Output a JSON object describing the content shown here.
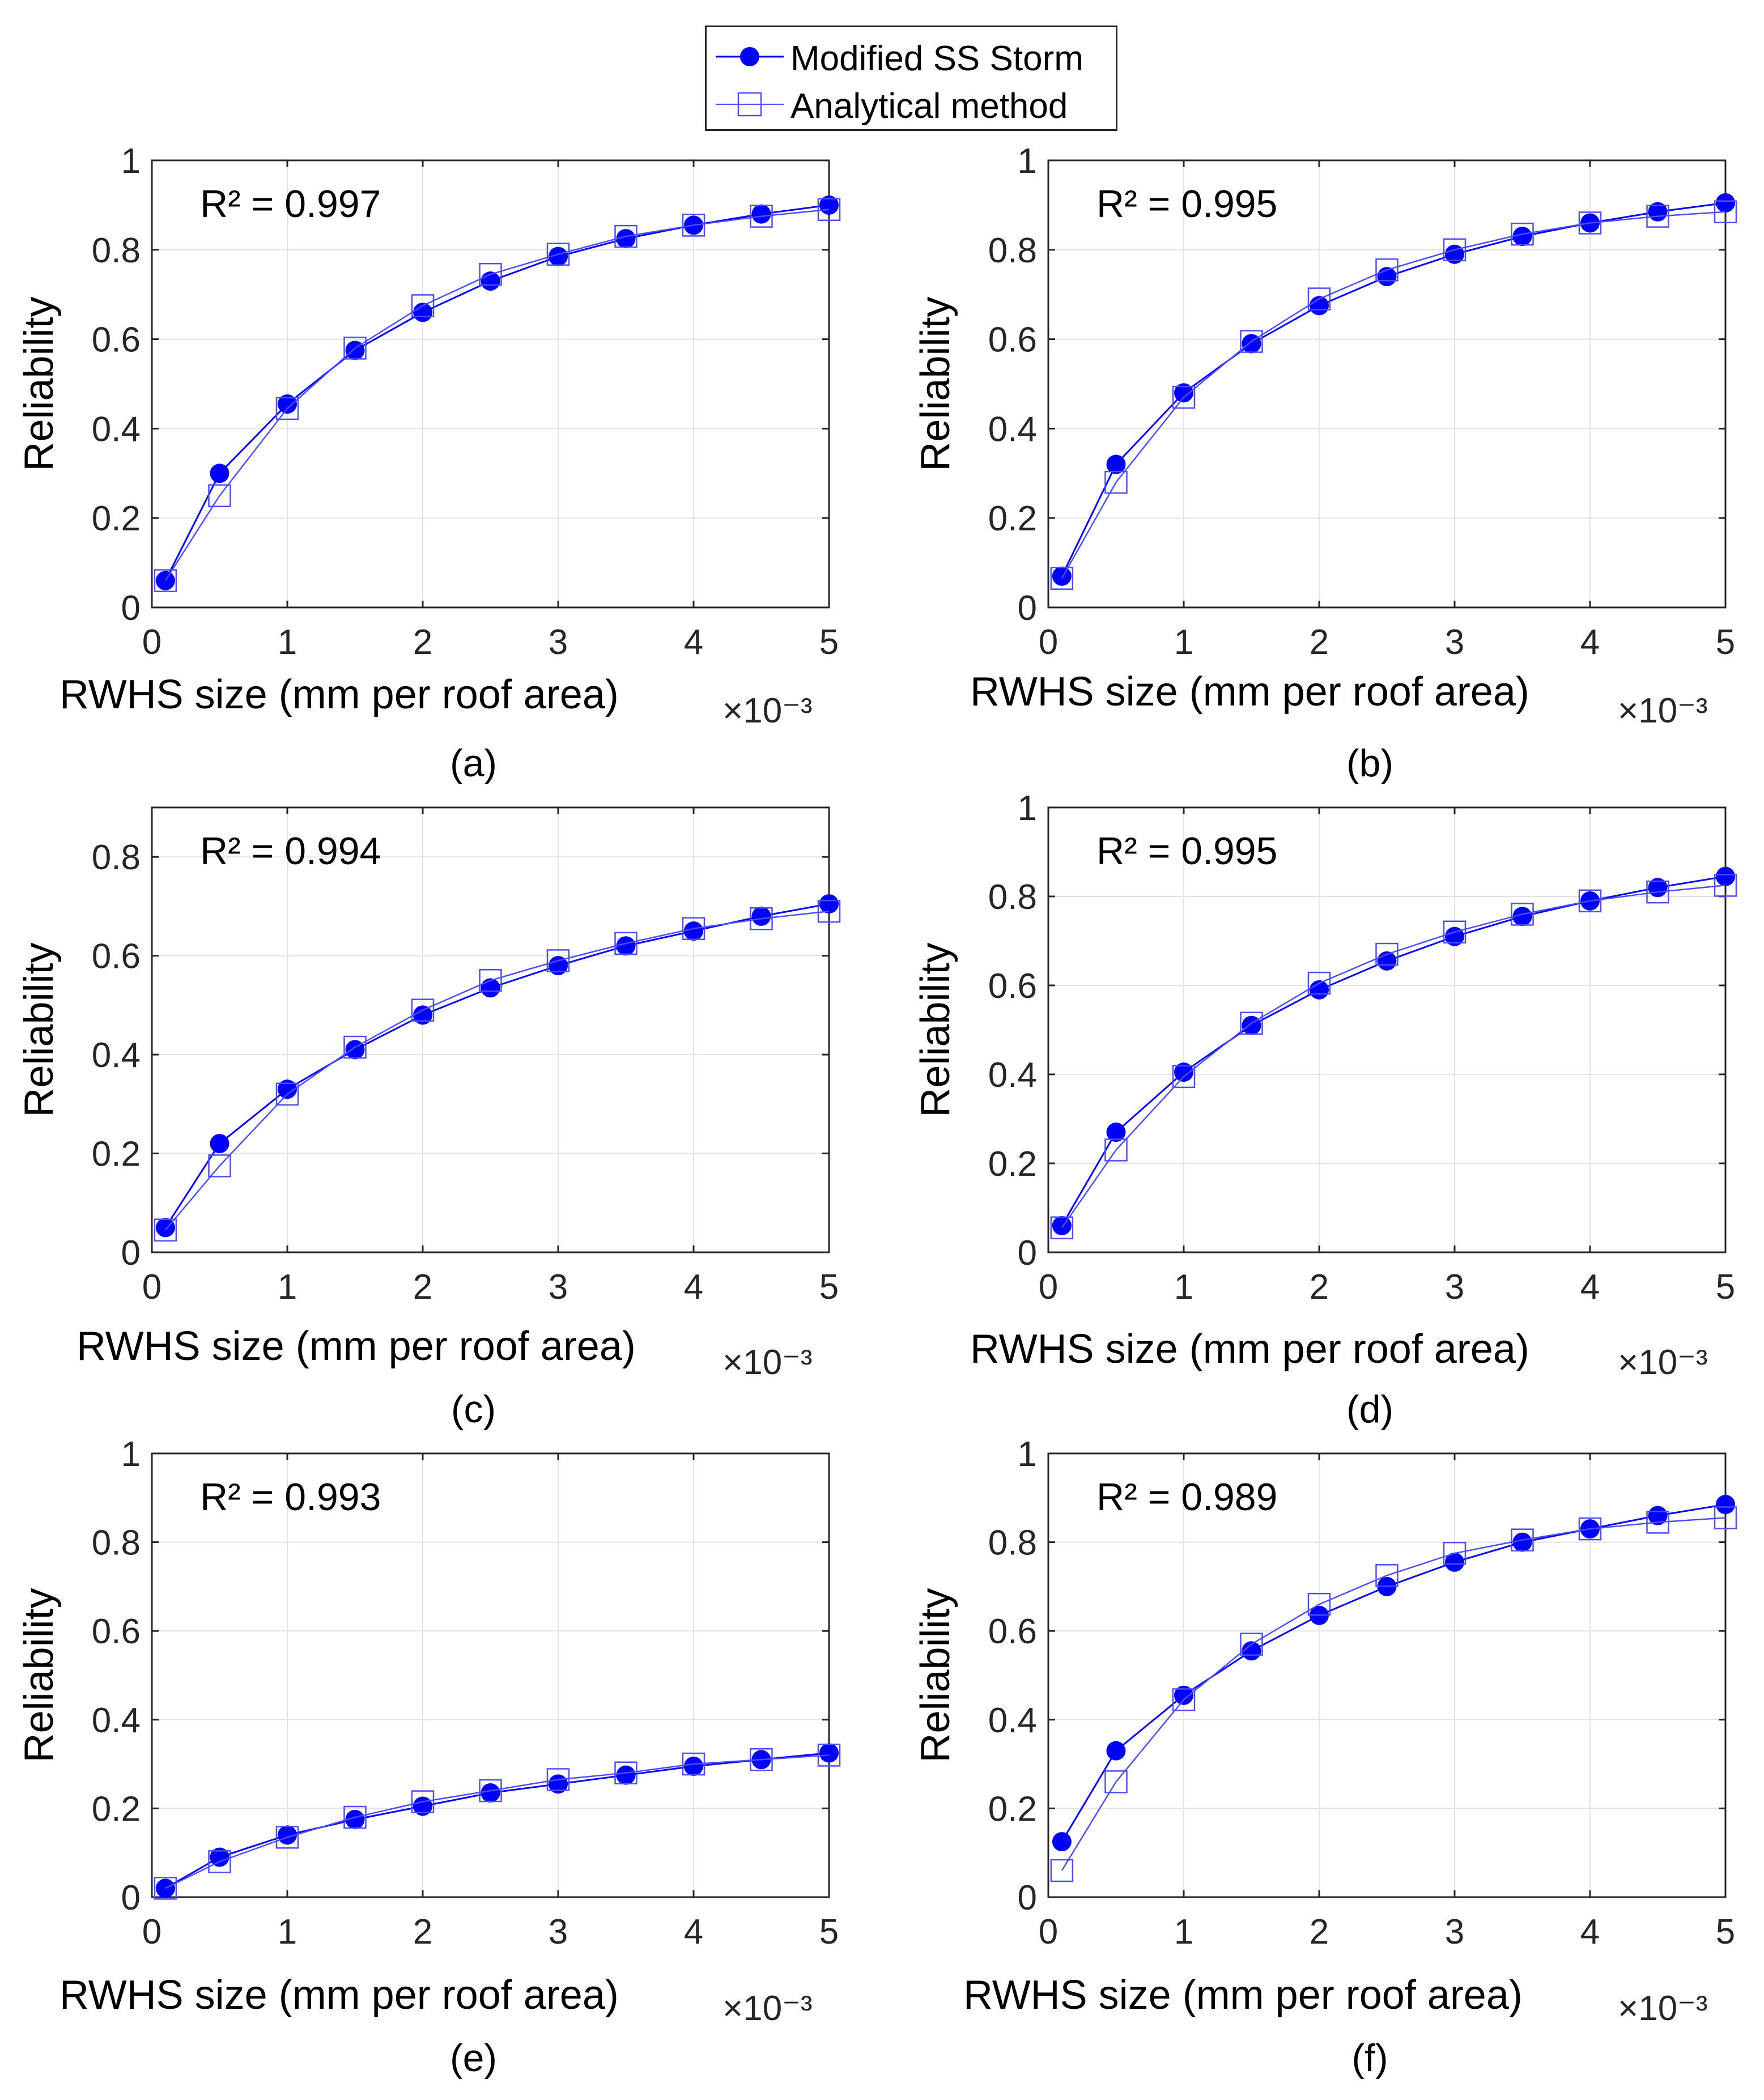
{
  "legend": {
    "series1": "Modified SS Storm",
    "series2": "Analytical method"
  },
  "colors": {
    "series": "#0000ff",
    "axis": "#262626",
    "grid": "#e3e3e3"
  },
  "chart_data": [
    {
      "type": "line",
      "panel_label": "(a)",
      "annotation": "R² = 0.997",
      "xlabel": "RWHS size (mm per roof area)",
      "x_multiplier": "×10⁻³",
      "ylabel": "Reliability",
      "xlim": [
        0,
        5
      ],
      "ylim": [
        0,
        1
      ],
      "xticks": [
        "0",
        "1",
        "2",
        "3",
        "4",
        "5"
      ],
      "yticks": [
        "0",
        "0.2",
        "0.4",
        "0.6",
        "0.8",
        "1"
      ],
      "x": [
        0.1,
        0.5,
        1,
        1.5,
        2,
        2.5,
        3,
        3.5,
        4,
        4.5,
        5
      ],
      "series": [
        {
          "name": "Modified SS Storm",
          "marker": "filled-circle",
          "values": [
            0.06,
            0.3,
            0.455,
            0.575,
            0.66,
            0.73,
            0.785,
            0.825,
            0.855,
            0.88,
            0.9
          ]
        },
        {
          "name": "Analytical method",
          "marker": "open-square",
          "values": [
            0.06,
            0.25,
            0.445,
            0.58,
            0.675,
            0.745,
            0.79,
            0.83,
            0.855,
            0.875,
            0.89
          ]
        }
      ]
    },
    {
      "type": "line",
      "panel_label": "(b)",
      "annotation": "R² = 0.995",
      "xlabel": "RWHS size (mm per roof area)",
      "x_multiplier": "×10⁻³",
      "ylabel": "Reliability",
      "xlim": [
        0,
        5
      ],
      "ylim": [
        0,
        1
      ],
      "xticks": [
        "0",
        "1",
        "2",
        "3",
        "4",
        "5"
      ],
      "yticks": [
        "0",
        "0.2",
        "0.4",
        "0.6",
        "0.8",
        "1"
      ],
      "x": [
        0.1,
        0.5,
        1,
        1.5,
        2,
        2.5,
        3,
        3.5,
        4,
        4.5,
        5
      ],
      "series": [
        {
          "name": "Modified SS Storm",
          "marker": "filled-circle",
          "values": [
            0.07,
            0.32,
            0.48,
            0.59,
            0.675,
            0.74,
            0.79,
            0.83,
            0.86,
            0.885,
            0.905
          ]
        },
        {
          "name": "Analytical method",
          "marker": "open-square",
          "values": [
            0.065,
            0.28,
            0.47,
            0.595,
            0.69,
            0.755,
            0.8,
            0.835,
            0.86,
            0.875,
            0.885
          ]
        }
      ]
    },
    {
      "type": "line",
      "panel_label": "(c)",
      "annotation": "R² = 0.994",
      "xlabel": "RWHS size (mm per roof area)",
      "x_multiplier": "×10⁻³",
      "ylabel": "Reliability",
      "xlim": [
        0,
        5
      ],
      "ylim": [
        0,
        0.9
      ],
      "xticks": [
        "0",
        "1",
        "2",
        "3",
        "4",
        "5"
      ],
      "yticks": [
        "0",
        "0.2",
        "0.4",
        "0.6",
        "0.8"
      ],
      "x": [
        0.1,
        0.5,
        1,
        1.5,
        2,
        2.5,
        3,
        3.5,
        4,
        4.5,
        5
      ],
      "series": [
        {
          "name": "Modified SS Storm",
          "marker": "filled-circle",
          "values": [
            0.05,
            0.22,
            0.33,
            0.41,
            0.48,
            0.535,
            0.58,
            0.62,
            0.65,
            0.68,
            0.705
          ]
        },
        {
          "name": "Analytical method",
          "marker": "open-square",
          "values": [
            0.045,
            0.175,
            0.32,
            0.415,
            0.49,
            0.55,
            0.59,
            0.625,
            0.655,
            0.675,
            0.69
          ]
        }
      ]
    },
    {
      "type": "line",
      "panel_label": "(d)",
      "annotation": "R² = 0.995",
      "xlabel": "RWHS size (mm per roof area)",
      "x_multiplier": "×10⁻³",
      "ylabel": "Reliability",
      "xlim": [
        0,
        5
      ],
      "ylim": [
        0,
        1
      ],
      "xticks": [
        "0",
        "1",
        "2",
        "3",
        "4",
        "5"
      ],
      "yticks": [
        "0",
        "0.2",
        "0.4",
        "0.6",
        "0.8",
        "1"
      ],
      "x": [
        0.1,
        0.5,
        1,
        1.5,
        2,
        2.5,
        3,
        3.5,
        4,
        4.5,
        5
      ],
      "series": [
        {
          "name": "Modified SS Storm",
          "marker": "filled-circle",
          "values": [
            0.06,
            0.27,
            0.405,
            0.51,
            0.59,
            0.655,
            0.71,
            0.755,
            0.79,
            0.82,
            0.845
          ]
        },
        {
          "name": "Analytical method",
          "marker": "open-square",
          "values": [
            0.055,
            0.23,
            0.395,
            0.515,
            0.605,
            0.67,
            0.72,
            0.76,
            0.79,
            0.81,
            0.825
          ]
        }
      ]
    },
    {
      "type": "line",
      "panel_label": "(e)",
      "annotation": "R² = 0.993",
      "xlabel": "RWHS size (mm per roof area)",
      "x_multiplier": "×10⁻³",
      "ylabel": "Reliability",
      "xlim": [
        0,
        5
      ],
      "ylim": [
        0,
        1
      ],
      "xticks": [
        "0",
        "1",
        "2",
        "3",
        "4",
        "5"
      ],
      "yticks": [
        "0",
        "0.2",
        "0.4",
        "0.6",
        "0.8",
        "1"
      ],
      "x": [
        0.1,
        0.5,
        1,
        1.5,
        2,
        2.5,
        3,
        3.5,
        4,
        4.5,
        5
      ],
      "series": [
        {
          "name": "Modified SS Storm",
          "marker": "filled-circle",
          "values": [
            0.02,
            0.09,
            0.14,
            0.175,
            0.205,
            0.235,
            0.255,
            0.275,
            0.295,
            0.31,
            0.325
          ]
        },
        {
          "name": "Analytical method",
          "marker": "open-square",
          "values": [
            0.02,
            0.08,
            0.135,
            0.18,
            0.215,
            0.24,
            0.265,
            0.28,
            0.3,
            0.31,
            0.32
          ]
        }
      ]
    },
    {
      "type": "line",
      "panel_label": "(f)",
      "annotation": "R² = 0.989",
      "xlabel": "RWHS size (mm per roof area)",
      "x_multiplier": "×10⁻³",
      "ylabel": "Reliability",
      "xlim": [
        0,
        5
      ],
      "ylim": [
        0,
        1
      ],
      "xticks": [
        "0",
        "1",
        "2",
        "3",
        "4",
        "5"
      ],
      "yticks": [
        "0",
        "0.2",
        "0.4",
        "0.6",
        "0.8",
        "1"
      ],
      "x": [
        0.1,
        0.5,
        1,
        1.5,
        2,
        2.5,
        3,
        3.5,
        4,
        4.5,
        5
      ],
      "series": [
        {
          "name": "Modified SS Storm",
          "marker": "filled-circle",
          "values": [
            0.125,
            0.33,
            0.455,
            0.555,
            0.635,
            0.7,
            0.755,
            0.8,
            0.83,
            0.86,
            0.885
          ]
        },
        {
          "name": "Analytical method",
          "marker": "open-square",
          "values": [
            0.06,
            0.26,
            0.445,
            0.57,
            0.66,
            0.725,
            0.775,
            0.805,
            0.83,
            0.845,
            0.855
          ]
        }
      ]
    }
  ]
}
